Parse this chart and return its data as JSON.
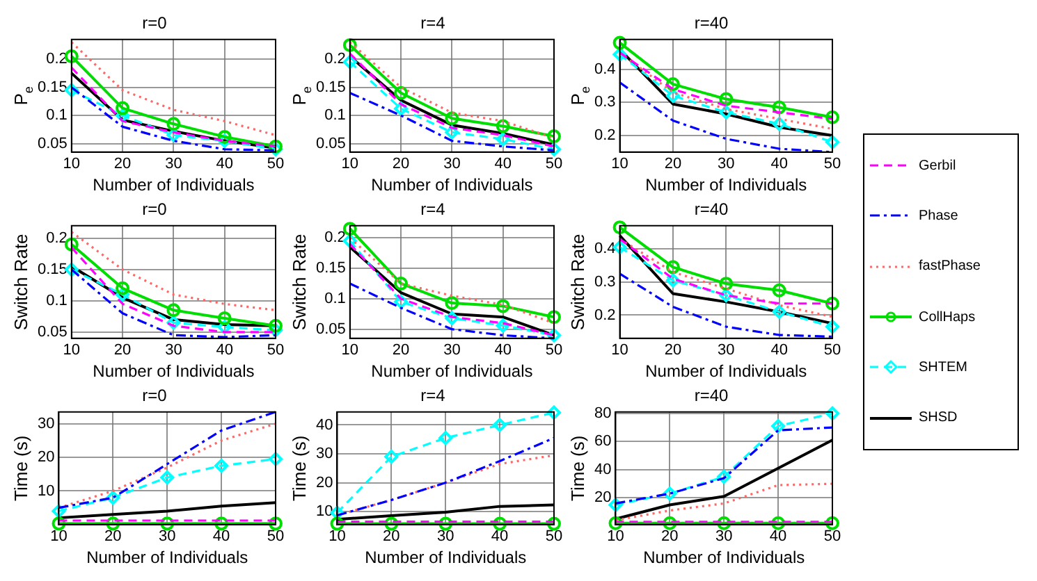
{
  "chart_data": [
    {
      "type": "line",
      "title": "r=0",
      "xlabel": "Number of Individuals",
      "ylabel": "P$_{e}$",
      "x": [
        10,
        20,
        30,
        40,
        50
      ],
      "xlim": [
        10,
        50
      ],
      "xticks": [
        10,
        20,
        30,
        40,
        50
      ],
      "ylim": [
        0.035,
        0.235
      ],
      "yticks": [
        0.05,
        0.1,
        0.15,
        0.2
      ],
      "grid": true,
      "legend": "right",
      "series": [
        {
          "name": "Gerbil",
          "color": "#ff00ff",
          "line_style": "dashed",
          "marker": "none",
          "values": [
            0.185,
            0.09,
            0.07,
            0.055,
            0.045
          ]
        },
        {
          "name": "Phase",
          "color": "#0000ff",
          "line_style": "dashdot",
          "marker": "none",
          "values": [
            0.15,
            0.08,
            0.055,
            0.04,
            0.038
          ]
        },
        {
          "name": "fastPhase",
          "color": "#ff6666",
          "line_style": "dotted",
          "marker": "none",
          "values": [
            0.23,
            0.145,
            0.11,
            0.09,
            0.065
          ]
        },
        {
          "name": "CollHaps",
          "color": "#00dd00",
          "line_style": "solid",
          "marker": "circle",
          "values": [
            0.205,
            0.113,
            0.085,
            0.062,
            0.045
          ]
        },
        {
          "name": "SHTEM",
          "color": "#00ffff",
          "line_style": "dashed",
          "marker": "diamond",
          "values": [
            0.145,
            0.1,
            0.065,
            0.055,
            0.04
          ]
        },
        {
          "name": "SHSD",
          "color": "#000000",
          "line_style": "solid",
          "marker": "none",
          "values": [
            0.175,
            0.092,
            0.072,
            0.055,
            0.042
          ]
        }
      ]
    },
    {
      "type": "line",
      "title": "r=4",
      "xlabel": "Number of Individuals",
      "ylabel": "P$_{e}$",
      "x": [
        10,
        20,
        30,
        40,
        50
      ],
      "xlim": [
        10,
        50
      ],
      "xticks": [
        10,
        20,
        30,
        40,
        50
      ],
      "ylim": [
        0.035,
        0.235
      ],
      "yticks": [
        0.05,
        0.1,
        0.15,
        0.2
      ],
      "grid": true,
      "series": [
        {
          "color": "#ff00ff",
          "line_style": "dashed",
          "marker": "none",
          "values": [
            0.21,
            0.12,
            0.078,
            0.065,
            0.045
          ]
        },
        {
          "color": "#0000ff",
          "line_style": "dashdot",
          "marker": "none",
          "values": [
            0.14,
            0.1,
            0.055,
            0.045,
            0.038
          ]
        },
        {
          "color": "#ff6666",
          "line_style": "dotted",
          "marker": "none",
          "values": [
            0.23,
            0.15,
            0.105,
            0.09,
            0.06
          ]
        },
        {
          "color": "#00dd00",
          "line_style": "solid",
          "marker": "circle",
          "values": [
            0.225,
            0.14,
            0.095,
            0.081,
            0.063
          ]
        },
        {
          "color": "#00ffff",
          "line_style": "dashed",
          "marker": "diamond",
          "values": [
            0.195,
            0.112,
            0.07,
            0.058,
            0.04
          ]
        },
        {
          "color": "#000000",
          "line_style": "solid",
          "marker": "none",
          "values": [
            0.205,
            0.127,
            0.083,
            0.068,
            0.048
          ]
        }
      ]
    },
    {
      "type": "line",
      "title": "r=40",
      "xlabel": "Number of Individuals",
      "ylabel": "P$_{e}$",
      "x": [
        10,
        20,
        30,
        40,
        50
      ],
      "xlim": [
        10,
        50
      ],
      "xticks": [
        10,
        20,
        30,
        40,
        50
      ],
      "ylim": [
        0.15,
        0.49
      ],
      "yticks": [
        0.2,
        0.3,
        0.4
      ],
      "grid": true,
      "series": [
        {
          "color": "#ff00ff",
          "line_style": "dashed",
          "marker": "none",
          "values": [
            0.45,
            0.34,
            0.29,
            0.27,
            0.25
          ]
        },
        {
          "color": "#0000ff",
          "line_style": "dashdot",
          "marker": "none",
          "values": [
            0.36,
            0.245,
            0.19,
            0.16,
            0.15
          ]
        },
        {
          "color": "#ff6666",
          "line_style": "dotted",
          "marker": "none",
          "values": [
            0.45,
            0.33,
            0.28,
            0.25,
            0.22
          ]
        },
        {
          "color": "#00dd00",
          "line_style": "solid",
          "marker": "circle",
          "values": [
            0.48,
            0.355,
            0.31,
            0.285,
            0.255
          ]
        },
        {
          "color": "#00ffff",
          "line_style": "dashed",
          "marker": "diamond",
          "values": [
            0.445,
            0.32,
            0.27,
            0.235,
            0.18
          ]
        },
        {
          "color": "#000000",
          "line_style": "solid",
          "marker": "none",
          "values": [
            0.46,
            0.295,
            0.265,
            0.225,
            0.2
          ]
        }
      ]
    },
    {
      "type": "line",
      "title": "r=0",
      "xlabel": "Number of Individuals",
      "ylabel": "Switch Rate",
      "x": [
        10,
        20,
        30,
        40,
        50
      ],
      "xlim": [
        10,
        50
      ],
      "xticks": [
        10,
        20,
        30,
        40,
        50
      ],
      "ylim": [
        0.04,
        0.22
      ],
      "yticks": [
        0.05,
        0.1,
        0.15,
        0.2
      ],
      "grid": true,
      "series": [
        {
          "color": "#ff00ff",
          "line_style": "dashed",
          "marker": "none",
          "values": [
            0.185,
            0.095,
            0.06,
            0.05,
            0.05
          ]
        },
        {
          "color": "#0000ff",
          "line_style": "dashdot",
          "marker": "none",
          "values": [
            0.15,
            0.08,
            0.045,
            0.042,
            0.045
          ]
        },
        {
          "color": "#ff6666",
          "line_style": "dotted",
          "marker": "none",
          "values": [
            0.21,
            0.15,
            0.11,
            0.095,
            0.085
          ]
        },
        {
          "color": "#00dd00",
          "line_style": "solid",
          "marker": "circle",
          "values": [
            0.19,
            0.12,
            0.085,
            0.072,
            0.06
          ]
        },
        {
          "color": "#00ffff",
          "line_style": "dashed",
          "marker": "diamond",
          "values": [
            0.15,
            0.11,
            0.065,
            0.058,
            0.053
          ]
        },
        {
          "color": "#000000",
          "line_style": "solid",
          "marker": "none",
          "values": [
            0.155,
            0.105,
            0.07,
            0.062,
            0.06
          ]
        }
      ]
    },
    {
      "type": "line",
      "title": "r=4",
      "xlabel": "Number of Individuals",
      "ylabel": "Switch Rate",
      "x": [
        10,
        20,
        30,
        40,
        50
      ],
      "xlim": [
        10,
        50
      ],
      "xticks": [
        10,
        20,
        30,
        40,
        50
      ],
      "ylim": [
        0.035,
        0.22
      ],
      "yticks": [
        0.05,
        0.1,
        0.15,
        0.2
      ],
      "grid": true,
      "series": [
        {
          "color": "#ff00ff",
          "line_style": "dashed",
          "marker": "none",
          "values": [
            0.19,
            0.1,
            0.07,
            0.06,
            0.04
          ]
        },
        {
          "color": "#0000ff",
          "line_style": "dashdot",
          "marker": "none",
          "values": [
            0.125,
            0.085,
            0.05,
            0.04,
            0.035
          ]
        },
        {
          "color": "#ff6666",
          "line_style": "dotted",
          "marker": "none",
          "values": [
            0.2,
            0.125,
            0.105,
            0.09,
            0.06
          ]
        },
        {
          "color": "#00dd00",
          "line_style": "solid",
          "marker": "circle",
          "values": [
            0.215,
            0.125,
            0.093,
            0.088,
            0.07
          ]
        },
        {
          "color": "#00ffff",
          "line_style": "dashed",
          "marker": "diamond",
          "values": [
            0.195,
            0.095,
            0.068,
            0.056,
            0.04
          ]
        },
        {
          "color": "#000000",
          "line_style": "solid",
          "marker": "none",
          "values": [
            0.185,
            0.11,
            0.075,
            0.07,
            0.04
          ]
        }
      ]
    },
    {
      "type": "line",
      "title": "r=40",
      "xlabel": "Number of Individuals",
      "ylabel": "Switch Rate",
      "x": [
        10,
        20,
        30,
        40,
        50
      ],
      "xlim": [
        10,
        50
      ],
      "xticks": [
        10,
        20,
        30,
        40,
        50
      ],
      "ylim": [
        0.13,
        0.47
      ],
      "yticks": [
        0.2,
        0.3,
        0.4
      ],
      "grid": true,
      "series": [
        {
          "color": "#ff00ff",
          "line_style": "dashed",
          "marker": "none",
          "values": [
            0.43,
            0.31,
            0.26,
            0.235,
            0.235
          ]
        },
        {
          "color": "#0000ff",
          "line_style": "dashdot",
          "marker": "none",
          "values": [
            0.325,
            0.225,
            0.165,
            0.14,
            0.135
          ]
        },
        {
          "color": "#ff6666",
          "line_style": "dotted",
          "marker": "none",
          "values": [
            0.43,
            0.33,
            0.28,
            0.23,
            0.195
          ]
        },
        {
          "color": "#00dd00",
          "line_style": "solid",
          "marker": "circle",
          "values": [
            0.465,
            0.345,
            0.295,
            0.275,
            0.235
          ]
        },
        {
          "color": "#00ffff",
          "line_style": "dashed",
          "marker": "diamond",
          "values": [
            0.405,
            0.305,
            0.26,
            0.21,
            0.165
          ]
        },
        {
          "color": "#000000",
          "line_style": "solid",
          "marker": "none",
          "values": [
            0.44,
            0.265,
            0.24,
            0.21,
            0.175
          ]
        }
      ]
    },
    {
      "type": "line",
      "title": "r=0",
      "xlabel": "Number of Individuals",
      "ylabel": "Time (s)",
      "x": [
        10,
        20,
        30,
        40,
        50
      ],
      "xlim": [
        10,
        50
      ],
      "xticks": [
        10,
        20,
        30,
        40,
        50
      ],
      "ylim": [
        0,
        33.5
      ],
      "yticks": [
        10,
        20,
        30
      ],
      "grid": true,
      "series": [
        {
          "color": "#ff00ff",
          "line_style": "dashed",
          "marker": "none",
          "values": [
            1.2,
            1.2,
            1.2,
            1.2,
            1.2
          ]
        },
        {
          "color": "#0000ff",
          "line_style": "dashdot",
          "marker": "none",
          "values": [
            5,
            8,
            18,
            28,
            33.5
          ]
        },
        {
          "color": "#ff6666",
          "line_style": "dotted",
          "marker": "none",
          "values": [
            5,
            10,
            17,
            25,
            30
          ]
        },
        {
          "color": "#00dd00",
          "line_style": "solid",
          "marker": "circle",
          "values": [
            0.3,
            0.3,
            0.3,
            0.3,
            0.3
          ]
        },
        {
          "color": "#00ffff",
          "line_style": "dashed",
          "marker": "diamond",
          "values": [
            4,
            8,
            14,
            17.5,
            19.5
          ]
        },
        {
          "color": "#000000",
          "line_style": "solid",
          "marker": "none",
          "values": [
            2,
            3,
            4,
            5.5,
            6.5
          ]
        }
      ]
    },
    {
      "type": "line",
      "title": "r=4",
      "xlabel": "Number of Individuals",
      "ylabel": "Time (s)",
      "x": [
        10,
        20,
        30,
        40,
        50
      ],
      "xlim": [
        10,
        50
      ],
      "xticks": [
        10,
        20,
        30,
        40,
        50
      ],
      "ylim": [
        5.5,
        44.5
      ],
      "yticks": [
        10,
        20,
        30,
        40
      ],
      "grid": true,
      "series": [
        {
          "color": "#ff00ff",
          "line_style": "dashed",
          "marker": "none",
          "values": [
            6.5,
            6.5,
            6.5,
            6.5,
            6.5
          ]
        },
        {
          "color": "#0000ff",
          "line_style": "dashdot",
          "marker": "none",
          "values": [
            8.7,
            14,
            20,
            27.5,
            35.5
          ]
        },
        {
          "color": "#ff6666",
          "line_style": "dotted",
          "marker": "none",
          "values": [
            8.7,
            14,
            20,
            26.5,
            29.5
          ]
        },
        {
          "color": "#00dd00",
          "line_style": "solid",
          "marker": "circle",
          "values": [
            5.8,
            5.8,
            5.8,
            5.8,
            5.8
          ]
        },
        {
          "color": "#00ffff",
          "line_style": "dashed",
          "marker": "diamond",
          "values": [
            9.6,
            29,
            35.5,
            40,
            44.3
          ]
        },
        {
          "color": "#000000",
          "line_style": "solid",
          "marker": "none",
          "values": [
            7.3,
            8.6,
            9.8,
            11.8,
            12.3
          ]
        }
      ]
    },
    {
      "type": "line",
      "title": "r=40",
      "xlabel": "Number of Individuals",
      "ylabel": "Time (s)",
      "x": [
        10,
        20,
        30,
        40,
        50
      ],
      "xlim": [
        10,
        50
      ],
      "xticks": [
        10,
        20,
        30,
        40,
        50
      ],
      "ylim": [
        1,
        81
      ],
      "yticks": [
        20,
        40,
        60,
        80
      ],
      "grid": true,
      "series": [
        {
          "color": "#ff00ff",
          "line_style": "dashed",
          "marker": "none",
          "values": [
            3,
            3,
            3,
            3,
            3
          ]
        },
        {
          "color": "#0000ff",
          "line_style": "dashdot",
          "marker": "none",
          "values": [
            16,
            23,
            34,
            68,
            70
          ]
        },
        {
          "color": "#ff6666",
          "line_style": "dotted",
          "marker": "none",
          "values": [
            4,
            11,
            16,
            29,
            30
          ]
        },
        {
          "color": "#00dd00",
          "line_style": "solid",
          "marker": "circle",
          "values": [
            2,
            2,
            2,
            2,
            2
          ]
        },
        {
          "color": "#00ffff",
          "line_style": "dashed",
          "marker": "diamond",
          "values": [
            15,
            23,
            35,
            71,
            80
          ]
        },
        {
          "color": "#000000",
          "line_style": "solid",
          "marker": "none",
          "values": [
            5,
            15,
            21,
            41,
            61
          ]
        }
      ]
    }
  ]
}
